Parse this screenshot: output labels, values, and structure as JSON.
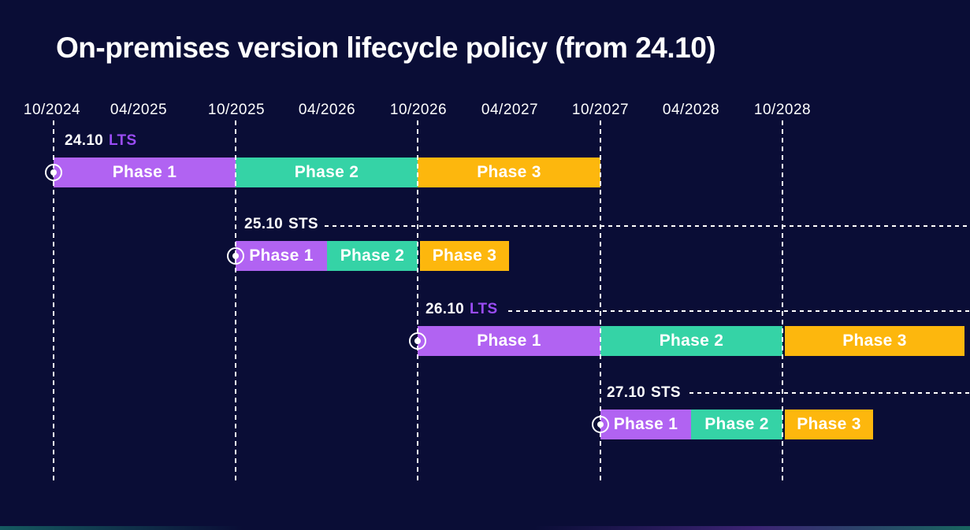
{
  "title": "On-premises version lifecycle policy (from 24.10)",
  "timeline": {
    "ticks": [
      "10/2024",
      "04/2025",
      "10/2025",
      "04/2026",
      "10/2026",
      "04/2027",
      "10/2027",
      "04/2028",
      "10/2028"
    ]
  },
  "rows": [
    {
      "version": "24.10",
      "channel": "LTS",
      "phases": [
        "Phase 1",
        "Phase 2",
        "Phase 3"
      ]
    },
    {
      "version": "25.10",
      "channel": "STS",
      "phases": [
        "Phase 1",
        "Phase 2",
        "Phase 3"
      ]
    },
    {
      "version": "26.10",
      "channel": "LTS",
      "phases": [
        "Phase 1",
        "Phase 2",
        "Phase 3"
      ]
    },
    {
      "version": "27.10",
      "channel": "STS",
      "phases": [
        "Phase 1",
        "Phase 2",
        "Phase 3"
      ]
    }
  ],
  "colors": {
    "bg": "#0a0d36",
    "bar_purple": "#b163f2",
    "bar_teal": "#35d3a6",
    "bar_yellow": "#fdb70d",
    "accent_purple": "#9a4cf5",
    "line": "#ffffff",
    "text": "#ffffff"
  },
  "chart_data": {
    "type": "bar",
    "subtype": "gantt-timeline",
    "title": "On-premises version lifecycle policy (from 24.10)",
    "x_ticks": [
      "10/2024",
      "04/2025",
      "10/2025",
      "04/2026",
      "10/2026",
      "04/2027",
      "10/2027",
      "04/2028",
      "10/2028"
    ],
    "x_gridlines_dashed": [
      "10/2024",
      "10/2025",
      "10/2026",
      "10/2027",
      "10/2028"
    ],
    "legend_position": "none",
    "phase_colors": {
      "Phase 1": "#b163f2",
      "Phase 2": "#35d3a6",
      "Phase 3": "#fdb70d"
    },
    "series": [
      {
        "name": "24.10 LTS",
        "start_marker": "10/2024",
        "phases": [
          {
            "label": "Phase 1",
            "start": "10/2024",
            "end": "10/2025"
          },
          {
            "label": "Phase 2",
            "start": "10/2025",
            "end": "10/2026"
          },
          {
            "label": "Phase 3",
            "start": "10/2026",
            "end": "10/2027"
          }
        ]
      },
      {
        "name": "25.10 STS",
        "start_marker": "10/2025",
        "phases": [
          {
            "label": "Phase 1",
            "start": "10/2025",
            "end": "04/2026"
          },
          {
            "label": "Phase 2",
            "start": "04/2026",
            "end": "10/2026"
          },
          {
            "label": "Phase 3",
            "start": "10/2026",
            "end": "04/2027"
          }
        ]
      },
      {
        "name": "26.10 LTS",
        "start_marker": "10/2026",
        "phases": [
          {
            "label": "Phase 1",
            "start": "10/2026",
            "end": "10/2027"
          },
          {
            "label": "Phase 2",
            "start": "10/2027",
            "end": "10/2028"
          },
          {
            "label": "Phase 3",
            "start": "10/2028",
            "end": "10/2029 (clipped at chart edge)"
          }
        ]
      },
      {
        "name": "27.10 STS",
        "start_marker": "10/2027",
        "phases": [
          {
            "label": "Phase 1",
            "start": "10/2027",
            "end": "04/2028"
          },
          {
            "label": "Phase 2",
            "start": "04/2028",
            "end": "10/2028"
          },
          {
            "label": "Phase 3",
            "start": "10/2028",
            "end": "04/2029"
          }
        ]
      }
    ]
  }
}
